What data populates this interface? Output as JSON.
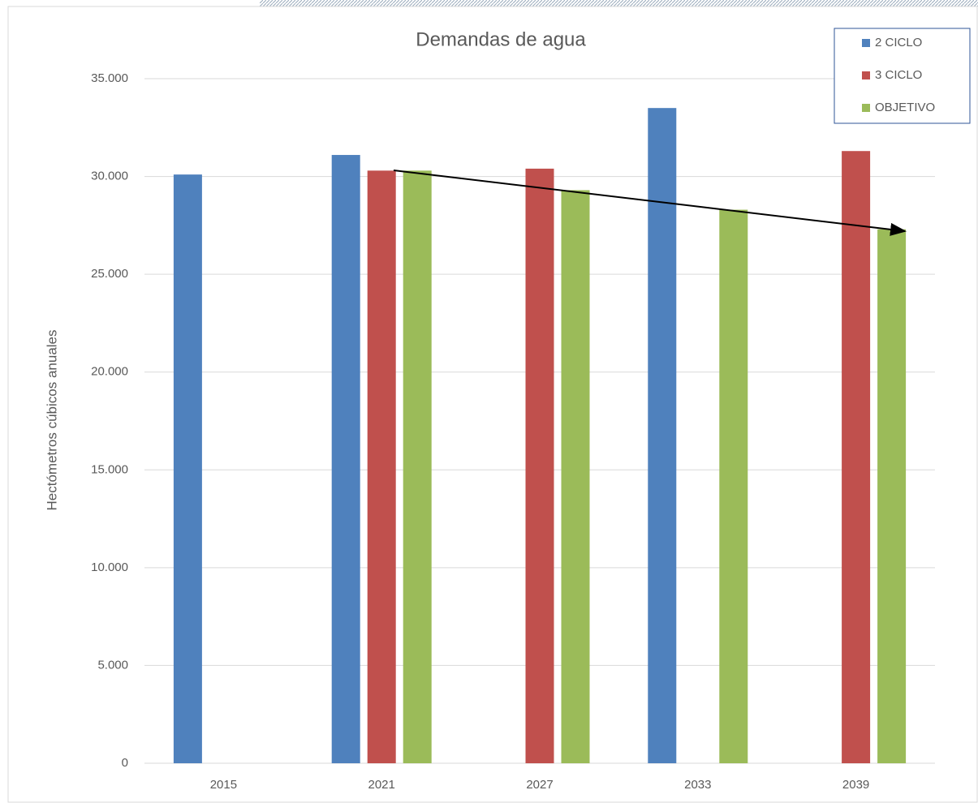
{
  "chart_data": {
    "type": "bar",
    "title": "Demandas de agua",
    "y_label": "Hectómetros cúbicos anuales",
    "categories": [
      "2015",
      "2021",
      "2027",
      "2033",
      "2039"
    ],
    "series": [
      {
        "name": "2 CICLO",
        "color": "#4f81bd",
        "values": [
          30100,
          31100,
          null,
          33500,
          null
        ]
      },
      {
        "name": "3 CICLO",
        "color": "#c0504d",
        "values": [
          null,
          30300,
          30400,
          null,
          31300
        ]
      },
      {
        "name": "OBJETIVO",
        "color": "#9bbb59",
        "values": [
          null,
          30300,
          29300,
          28300,
          27300
        ]
      }
    ],
    "ylim": [
      0,
      35000
    ],
    "yticks": [
      0,
      {
        "value": 5000,
        "label": "5.000"
      },
      {
        "value": 10000,
        "label": "10.000"
      },
      {
        "value": 15000,
        "label": "15.000"
      },
      {
        "value": 20000,
        "label": "20.000"
      },
      {
        "value": 25000,
        "label": "25.000"
      },
      {
        "value": 30000,
        "label": "30.000"
      },
      {
        "value": 35000,
        "label": "35.000"
      }
    ],
    "grid": true,
    "legend": "upper right"
  }
}
